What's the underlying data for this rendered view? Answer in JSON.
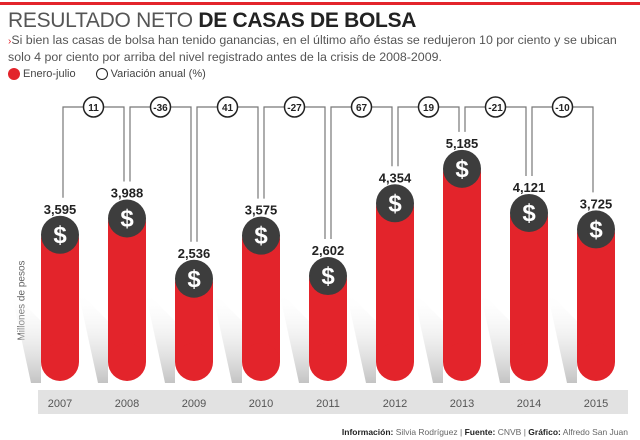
{
  "header": {
    "title_light": "RESULTADO NETO",
    "title_bold": "DE CASAS DE BOLSA",
    "subtitle_marker": "›",
    "subtitle": "Si bien las casas de bolsa han tenido ganancias, en el último año éstas se redujeron 10 por ciento y se ubican solo 4 por ciento por arriba del nivel registrado antes de la crisis de 2008-2009."
  },
  "legend": {
    "series_label": "Enero-julio",
    "change_label": "Variación anual (%)"
  },
  "colors": {
    "accent": "#e3242b",
    "coin": "#3d3d3d",
    "year_band": "#e2e2e2",
    "connector": "#777777"
  },
  "chart_data": {
    "type": "bar",
    "title": "RESULTADO NETO DE CASAS DE BOLSA",
    "ylabel": "Millones de pesos",
    "xlabel": "",
    "categories": [
      "2007",
      "2008",
      "2009",
      "2010",
      "2011",
      "2012",
      "2013",
      "2014",
      "2015"
    ],
    "series": [
      {
        "name": "Enero-julio",
        "values": [
          3595,
          3988,
          2536,
          3575,
          2602,
          4354,
          5185,
          4121,
          3725
        ]
      }
    ],
    "value_labels": [
      "3,595",
      "3,988",
      "2,536",
      "3,575",
      "2,602",
      "4,354",
      "5,185",
      "4,121",
      "3,725"
    ],
    "annual_change": {
      "name": "Variación anual (%)",
      "values": [
        11,
        -36,
        41,
        -27,
        67,
        19,
        -21,
        -10
      ],
      "labels": [
        "11",
        "-36",
        "41",
        "-27",
        "67",
        "19",
        "-21",
        "-10"
      ]
    },
    "coin_symbol": "$",
    "grid": false,
    "legend": "top-left"
  },
  "footer": {
    "info_label": "Información:",
    "info_value": "Silvia Rodríguez",
    "source_label": "Fuente:",
    "source_value": "CNVB",
    "graphic_label": "Gráfico:",
    "graphic_value": "Alfredo San Juan",
    "separator": "|"
  }
}
